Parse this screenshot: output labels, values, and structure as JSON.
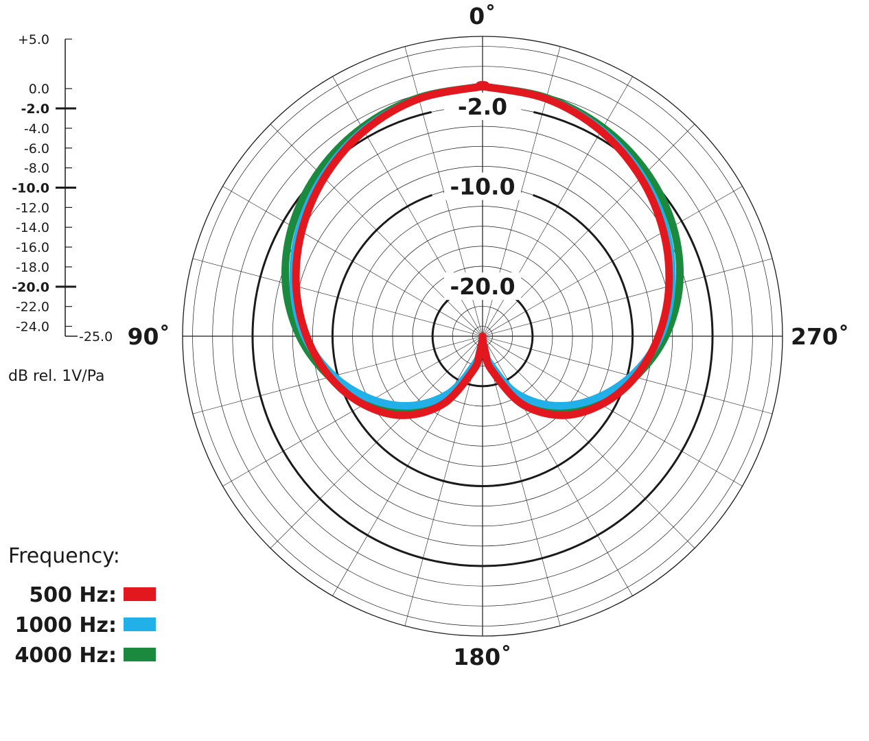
{
  "chart_data": {
    "type": "polar",
    "scale": {
      "min": -25,
      "max": 5,
      "unit_label": "dB rel. 1V/Pa",
      "ticks": [
        {
          "value": 5,
          "label": "+5.0",
          "major": false
        },
        {
          "value": 0,
          "label": "0.0",
          "major": false
        },
        {
          "value": -2,
          "label": "-2.0",
          "major": true
        },
        {
          "value": -4,
          "label": "-4.0",
          "major": false
        },
        {
          "value": -6,
          "label": "-6.0",
          "major": false
        },
        {
          "value": -8,
          "label": "-8.0",
          "major": false
        },
        {
          "value": -10,
          "label": "-10.0",
          "major": true
        },
        {
          "value": -12,
          "label": "-12.0",
          "major": false
        },
        {
          "value": -14,
          "label": "-14.0",
          "major": false
        },
        {
          "value": -16,
          "label": "-16.0",
          "major": false
        },
        {
          "value": -18,
          "label": "-18.0",
          "major": false
        },
        {
          "value": -20,
          "label": "-20.0",
          "major": true
        },
        {
          "value": -22,
          "label": "-22.0",
          "major": false
        },
        {
          "value": -24,
          "label": "-24.0",
          "major": false
        },
        {
          "value": -25,
          "label": "-25.0",
          "major": false
        }
      ]
    },
    "grid_rings_db": [
      4,
      2,
      0,
      -2,
      -4,
      -6,
      -8,
      -10,
      -12,
      -14,
      -16,
      -18,
      -20,
      -22,
      -24
    ],
    "major_rings": [
      {
        "value": -2,
        "label": "-2.0"
      },
      {
        "value": -10,
        "label": "-10.0"
      },
      {
        "value": -20,
        "label": "-20.0"
      }
    ],
    "angle_labels": [
      {
        "angle": 0,
        "label": "0˚"
      },
      {
        "angle": 90,
        "label": "90˚"
      },
      {
        "angle": 180,
        "label": "180˚"
      },
      {
        "angle": 270,
        "label": "270˚"
      }
    ],
    "spoke_step_deg": 15,
    "legend_title": "Frequency:",
    "series": [
      {
        "name": "4000 Hz:",
        "color": "#1b8a3e",
        "angles": [
          0,
          15,
          30,
          45,
          60,
          75,
          90,
          105,
          120,
          135,
          150,
          165,
          170,
          175,
          180
        ],
        "values": [
          0,
          -0.3,
          -0.9,
          -1.8,
          -3.0,
          -4.6,
          -6.7,
          -9.2,
          -11.8,
          -14.5,
          -17.8,
          -21.8,
          -23.3,
          -24.3,
          -24.7
        ]
      },
      {
        "name": "1000 Hz:",
        "color": "#22b0e8",
        "angles": [
          0,
          15,
          30,
          45,
          60,
          75,
          90,
          105,
          120,
          135,
          150,
          165,
          170,
          175,
          180
        ],
        "values": [
          0,
          -0.4,
          -1.2,
          -2.4,
          -3.8,
          -5.4,
          -7.2,
          -9.6,
          -12.3,
          -15.2,
          -18.5,
          -22.2,
          -23.6,
          -24.5,
          -24.9
        ]
      },
      {
        "name": "500 Hz:",
        "color": "#e3181f",
        "angles": [
          0,
          15,
          30,
          45,
          60,
          75,
          90,
          105,
          120,
          135,
          150,
          165,
          170,
          175,
          180
        ],
        "values": [
          0,
          -0.4,
          -1.3,
          -2.6,
          -4.1,
          -5.7,
          -7.4,
          -9.2,
          -11.3,
          -13.8,
          -17.2,
          -21.5,
          -23.2,
          -24.4,
          -25.0
        ]
      }
    ],
    "legend_order": [
      "500 Hz:",
      "1000 Hz:",
      "4000 Hz:"
    ]
  }
}
